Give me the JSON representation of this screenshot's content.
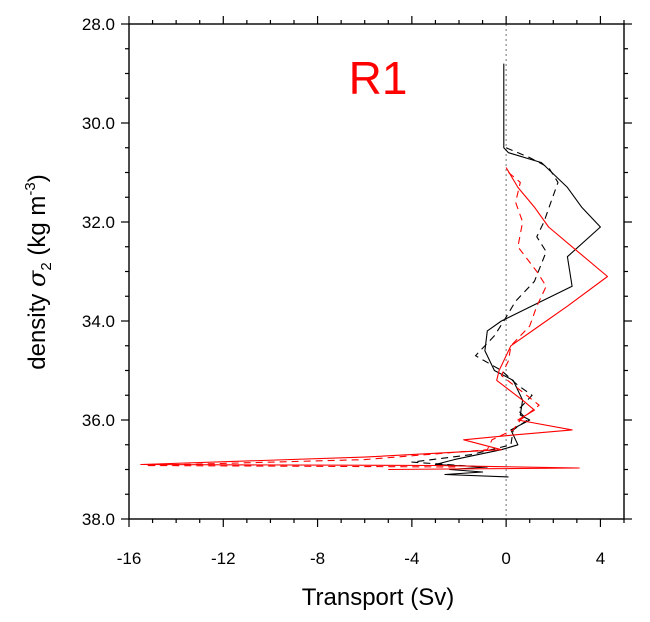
{
  "chart_data": {
    "type": "line",
    "title": "R1",
    "title_color": "#ff0000",
    "xlabel": "Transport (Sv)",
    "ylabel_prefix": "density ",
    "ylabel_symbol": "σ",
    "ylabel_subscript": "2",
    "ylabel_unit_open": " (kg m",
    "ylabel_unit_sup": "-3",
    "ylabel_unit_close": ")",
    "xlim": [
      -16,
      5
    ],
    "ylim": [
      38,
      28
    ],
    "x_ticks": [
      -16,
      -12,
      -8,
      -4,
      0,
      4
    ],
    "x_tick_labels": [
      "-16",
      "-12",
      "-8",
      "-4",
      "0",
      "4"
    ],
    "y_ticks": [
      28,
      30,
      32,
      34,
      36,
      38
    ],
    "y_tick_labels": [
      "28.0",
      "30.0",
      "32.0",
      "34.0",
      "36.0",
      "38.0"
    ],
    "zero_line": {
      "x": 0,
      "style": "dotted",
      "color": "#888888"
    },
    "series": [
      {
        "color": "#000000",
        "dash": "solid",
        "points": [
          [
            -0.1,
            28.8
          ],
          [
            -0.1,
            30.5
          ],
          [
            0.1,
            30.6
          ],
          [
            1.5,
            30.8
          ],
          [
            2.6,
            31.3
          ],
          [
            3.2,
            31.7
          ],
          [
            4.0,
            32.1
          ],
          [
            2.6,
            32.7
          ],
          [
            2.8,
            33.3
          ],
          [
            1.5,
            33.6
          ],
          [
            -0.2,
            34.0
          ],
          [
            -0.8,
            34.2
          ],
          [
            -0.9,
            34.6
          ],
          [
            -0.5,
            35.0
          ],
          [
            0.3,
            35.2
          ],
          [
            0.7,
            35.6
          ],
          [
            0.6,
            35.9
          ],
          [
            1.0,
            36.0
          ],
          [
            0.2,
            36.2
          ],
          [
            0.5,
            36.5
          ],
          [
            -0.2,
            36.6
          ],
          [
            -2.2,
            36.8
          ],
          [
            -3.0,
            36.9
          ],
          [
            -0.8,
            36.95
          ],
          [
            -2.4,
            37.0
          ],
          [
            -1.0,
            37.05
          ],
          [
            -2.6,
            37.1
          ],
          [
            0.1,
            37.15
          ]
        ]
      },
      {
        "color": "#000000",
        "dash": "dashed",
        "points": [
          [
            0.0,
            30.5
          ],
          [
            1.0,
            30.7
          ],
          [
            1.8,
            30.9
          ],
          [
            2.2,
            31.2
          ],
          [
            1.9,
            31.6
          ],
          [
            1.6,
            32.0
          ],
          [
            1.3,
            32.3
          ],
          [
            1.7,
            32.6
          ],
          [
            1.2,
            33.2
          ],
          [
            0.4,
            33.6
          ],
          [
            -0.1,
            34.0
          ],
          [
            -0.5,
            34.3
          ],
          [
            -1.3,
            34.7
          ],
          [
            -0.2,
            35.0
          ],
          [
            0.5,
            35.3
          ],
          [
            1.1,
            35.5
          ],
          [
            0.5,
            35.8
          ],
          [
            0.9,
            36.0
          ],
          [
            0.3,
            36.2
          ],
          [
            0.2,
            36.5
          ],
          [
            -1.5,
            36.7
          ],
          [
            -4.0,
            36.85
          ],
          [
            -1.0,
            36.95
          ]
        ]
      },
      {
        "color": "#ff0000",
        "dash": "solid",
        "points": [
          [
            0.0,
            30.9
          ],
          [
            0.5,
            31.3
          ],
          [
            1.2,
            31.7
          ],
          [
            1.8,
            32.1
          ],
          [
            2.8,
            32.5
          ],
          [
            4.3,
            33.1
          ],
          [
            2.6,
            33.7
          ],
          [
            1.4,
            34.1
          ],
          [
            0.2,
            34.5
          ],
          [
            -0.3,
            35.0
          ],
          [
            -0.4,
            35.2
          ],
          [
            0.7,
            35.6
          ],
          [
            1.2,
            35.8
          ],
          [
            0.5,
            36.0
          ],
          [
            2.8,
            36.2
          ],
          [
            0.4,
            36.3
          ],
          [
            -1.8,
            36.4
          ],
          [
            -0.2,
            36.6
          ],
          [
            -6.0,
            36.75
          ],
          [
            -15.5,
            36.9
          ],
          [
            -3.0,
            36.92
          ],
          [
            3.1,
            36.97
          ],
          [
            -2.5,
            36.99
          ],
          [
            -5.0,
            37.0
          ]
        ]
      },
      {
        "color": "#ff0000",
        "dash": "dashed",
        "points": [
          [
            0.1,
            31.0
          ],
          [
            0.6,
            31.2
          ],
          [
            0.4,
            31.6
          ],
          [
            0.7,
            32.0
          ],
          [
            0.5,
            32.5
          ],
          [
            1.3,
            33.0
          ],
          [
            1.7,
            33.3
          ],
          [
            1.3,
            33.7
          ],
          [
            1.0,
            34.1
          ],
          [
            0.2,
            34.5
          ],
          [
            0.1,
            34.8
          ],
          [
            -0.2,
            35.1
          ],
          [
            0.6,
            35.4
          ],
          [
            1.4,
            35.7
          ],
          [
            0.6,
            36.0
          ],
          [
            0.3,
            36.2
          ],
          [
            -0.6,
            36.4
          ],
          [
            -0.8,
            36.6
          ],
          [
            -6.0,
            36.8
          ],
          [
            -15.3,
            36.92
          ],
          [
            -2.0,
            36.95
          ]
        ]
      }
    ]
  }
}
